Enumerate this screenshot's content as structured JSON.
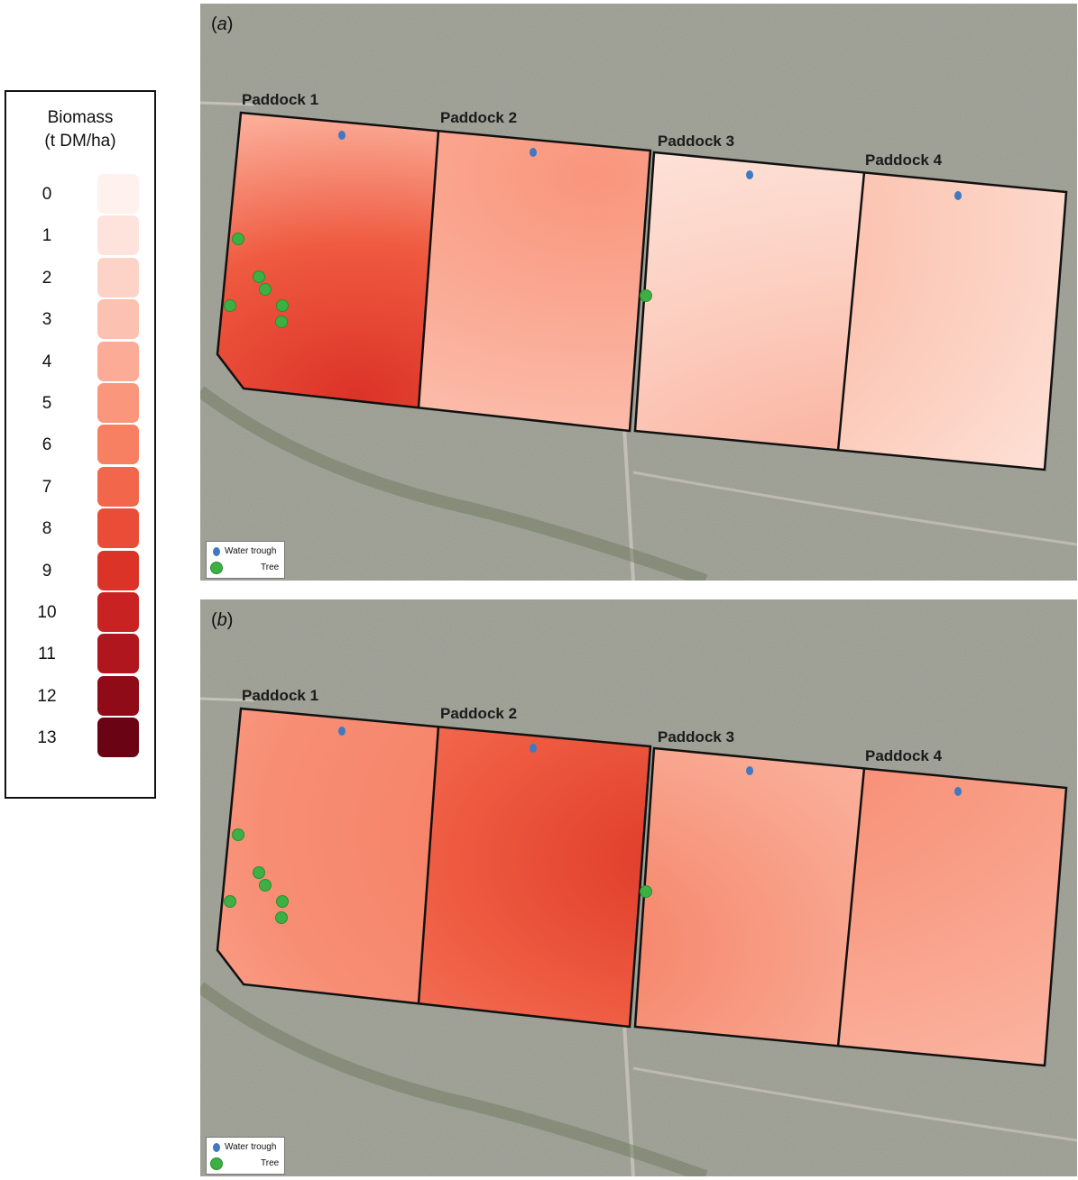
{
  "legend": {
    "title_line1": "Biomass",
    "title_line2": "(t DM/ha)",
    "classes": [
      {
        "label": "0",
        "color": "#fff1ee"
      },
      {
        "label": "1",
        "color": "#fee3dc"
      },
      {
        "label": "2",
        "color": "#fdd3c7"
      },
      {
        "label": "3",
        "color": "#fcc1b0"
      },
      {
        "label": "4",
        "color": "#fbab96"
      },
      {
        "label": "5",
        "color": "#fa967c"
      },
      {
        "label": "6",
        "color": "#f77f62"
      },
      {
        "label": "7",
        "color": "#f2674b"
      },
      {
        "label": "8",
        "color": "#ea4d37"
      },
      {
        "label": "9",
        "color": "#dc3328"
      },
      {
        "label": "10",
        "color": "#c92222"
      },
      {
        "label": "11",
        "color": "#b0161d"
      },
      {
        "label": "12",
        "color": "#8f0b18"
      },
      {
        "label": "13",
        "color": "#6a0414"
      }
    ]
  },
  "panels": [
    {
      "id": "a",
      "label_open": "(",
      "label_letter": "a",
      "label_close": ")",
      "paddocks": [
        "Paddock 1",
        "Paddock 2",
        "Paddock 3",
        "Paddock 4"
      ],
      "legend_items": {
        "trough": "Water trough",
        "tree": "Tree"
      }
    },
    {
      "id": "b",
      "label_open": "(",
      "label_letter": "b",
      "label_close": ")",
      "paddocks": [
        "Paddock 1",
        "Paddock 2",
        "Paddock 3",
        "Paddock 4"
      ],
      "legend_items": {
        "trough": "Water trough",
        "tree": "Tree"
      }
    }
  ],
  "colors": {
    "background_grass": "#a7a79e",
    "boundary": "#111111",
    "water_trough": "#3f79c2",
    "tree": "#3cb043"
  }
}
